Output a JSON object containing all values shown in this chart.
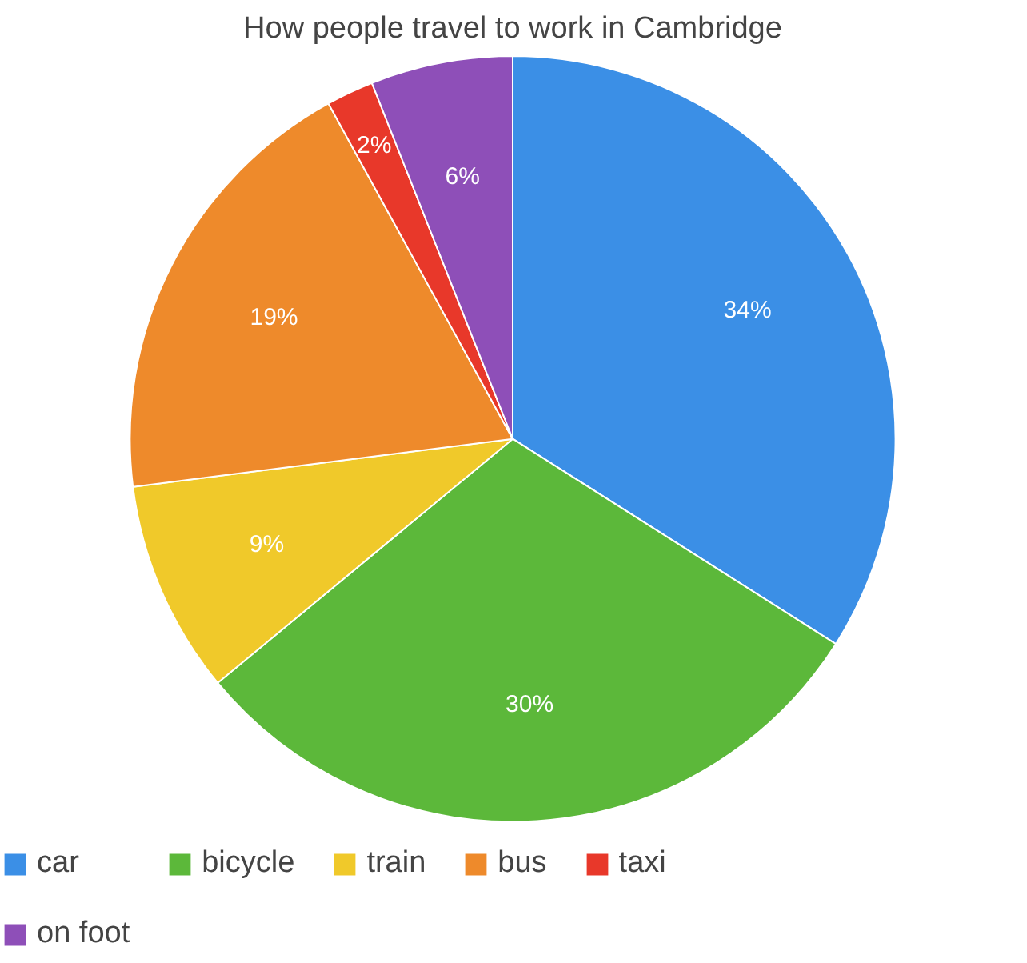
{
  "chart_data": {
    "type": "pie",
    "title": "How people travel to work in Cambridge",
    "categories": [
      "car",
      "bicycle",
      "train",
      "bus",
      "taxi",
      "on foot"
    ],
    "values": [
      34,
      30,
      9,
      19,
      2,
      6
    ],
    "value_labels": [
      "34%",
      "30%",
      "9%",
      "19%",
      "2%",
      "6%"
    ],
    "colors": [
      "#3b8fe6",
      "#5cb83a",
      "#f0c92a",
      "#ee8a2b",
      "#e8382a",
      "#8e4fb8"
    ],
    "legend": "bottom"
  }
}
